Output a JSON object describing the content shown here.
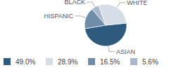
{
  "chart_data": {
    "type": "pie",
    "categories": [
      "ASIAN",
      "WHITE",
      "HISPANIC",
      "BLACK"
    ],
    "values": [
      49.0,
      28.9,
      16.5,
      5.6
    ],
    "value_labels": [
      "49.0%",
      "28.9%",
      "16.5%",
      "5.6%"
    ],
    "colors": [
      "#2e5b7d",
      "#d5dde7",
      "#6f8ca9",
      "#a8b8ca"
    ],
    "legend": "bottom"
  }
}
